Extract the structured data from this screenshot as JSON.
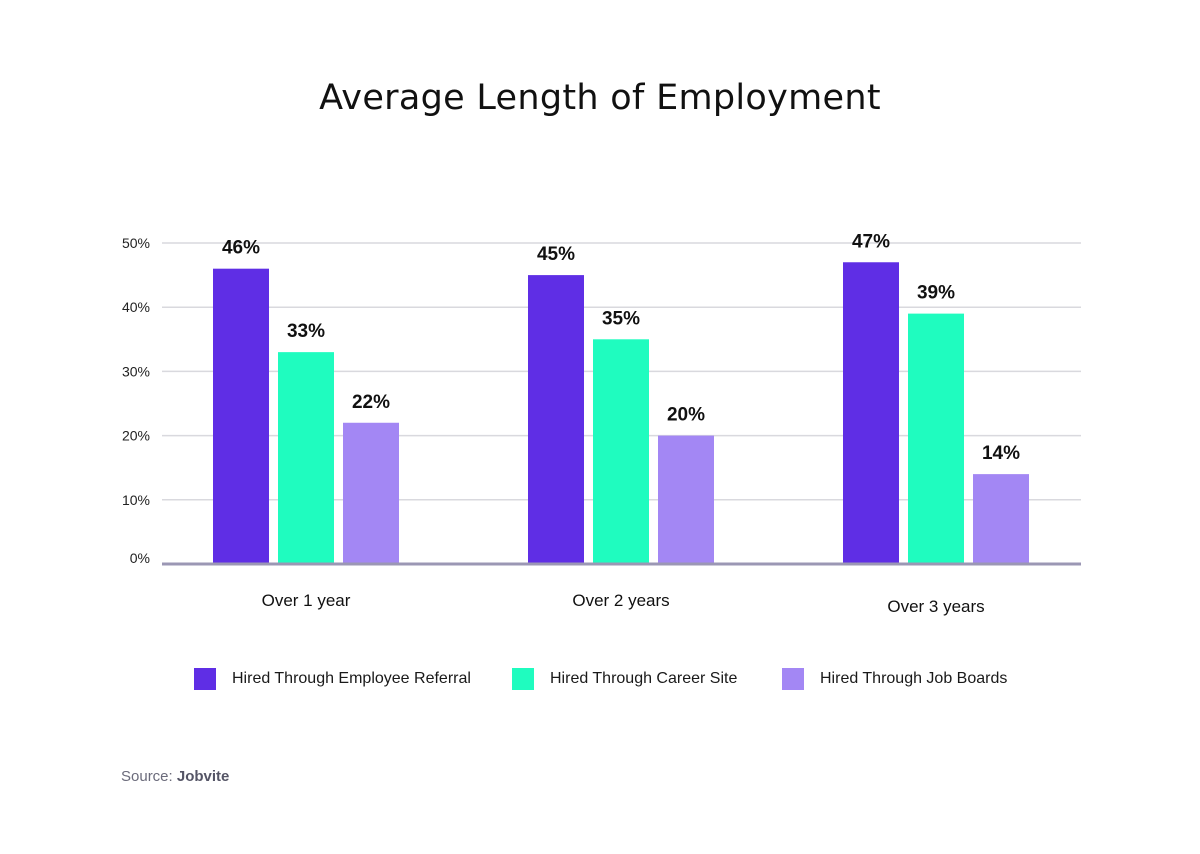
{
  "chart_data": {
    "type": "bar",
    "title": "Average Length of Employment",
    "categories": [
      "Over 1 year",
      "Over 2 years",
      "Over 3 years"
    ],
    "series": [
      {
        "name": "Hired Through Employee Referral",
        "values": [
          46,
          45,
          47
        ],
        "labels": [
          "46%",
          "45%",
          "47%"
        ],
        "color": "#5f2ee5"
      },
      {
        "name": "Hired Through Career Site",
        "values": [
          33,
          35,
          39
        ],
        "labels": [
          "33%",
          "35%",
          "39%"
        ],
        "color": "#1ffcbf"
      },
      {
        "name": "Hired Through Job Boards",
        "values": [
          22,
          20,
          14
        ],
        "labels": [
          "22%",
          "20%",
          "14%"
        ],
        "color": "#a387f4"
      }
    ],
    "ylim": [
      0,
      50
    ],
    "yticks": [
      "0%",
      "10%",
      "20%",
      "30%",
      "40%",
      "50%"
    ],
    "grid": true,
    "legend_position": "bottom"
  },
  "source": {
    "prefix": "Source: ",
    "name": "Jobvite"
  },
  "colors": {
    "gridline": "#d9d9de",
    "baseline": "#9b97b4"
  }
}
